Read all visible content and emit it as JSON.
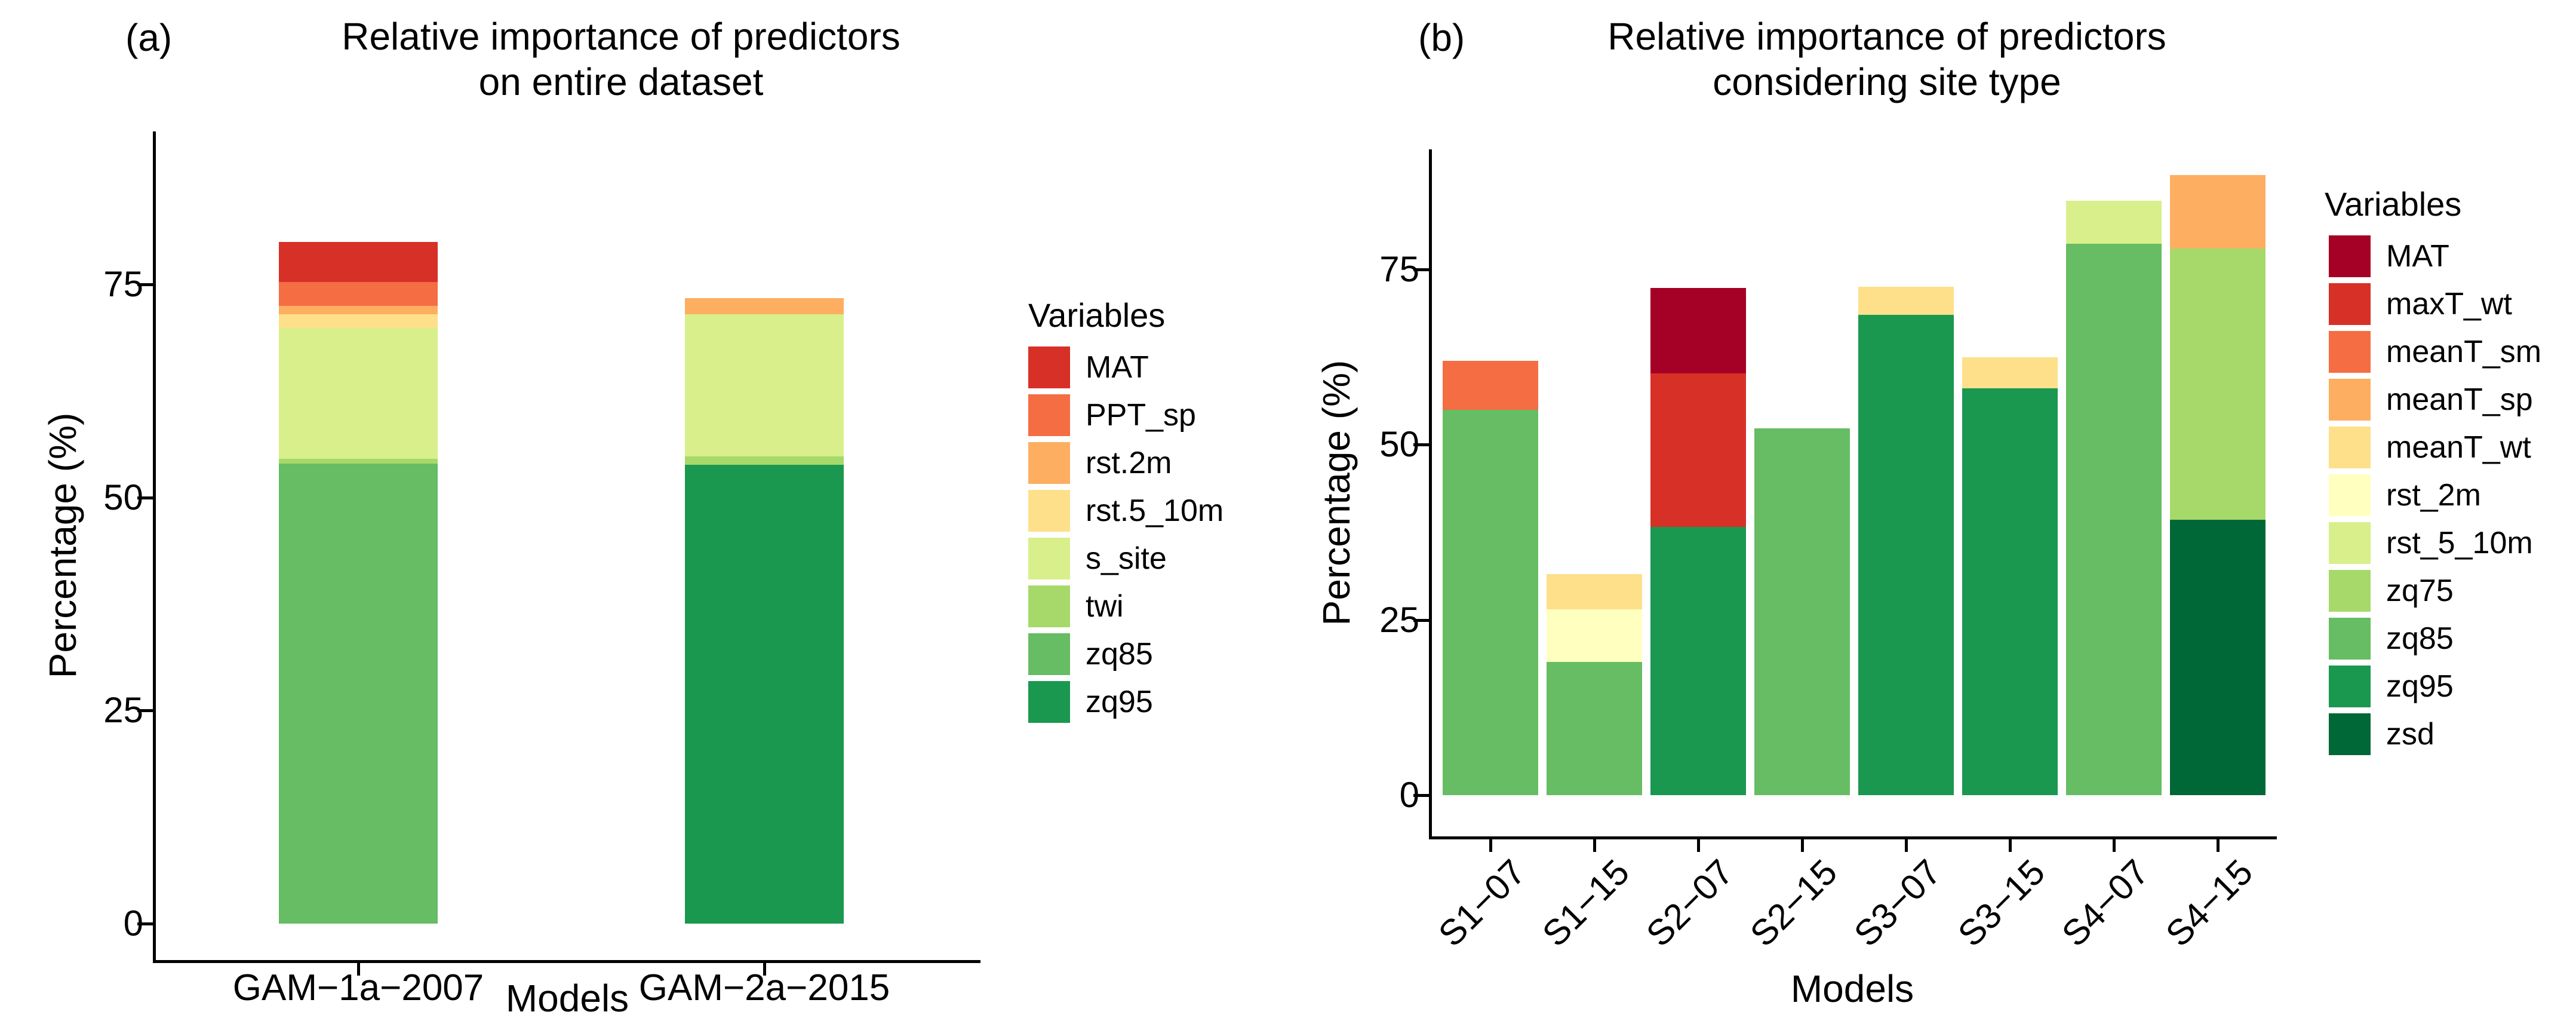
{
  "figure": {
    "background_color": "#ffffff",
    "text_color": "#000000",
    "panel_a": {
      "tag": "(a)",
      "title_line1": "Relative importance of predictors",
      "title_line2": "on entire dataset",
      "ylabel": "Percentage (%)",
      "xlabel": "Models",
      "legend_title": "Variables"
    },
    "panel_b": {
      "tag": "(b)",
      "title_line1": "Relative importance of predictors",
      "title_line2": "considering site type",
      "ylabel": "Percentage (%)",
      "xlabel": "Models",
      "legend_title": "Variables"
    }
  },
  "chart_data": [
    {
      "panel": "a",
      "type": "bar",
      "stacked": true,
      "title": "(a) Relative importance of predictors on entire dataset",
      "xlabel": "Models",
      "ylabel": "Percentage (%)",
      "yticks": [
        0,
        25,
        50,
        75
      ],
      "ylim": [
        0,
        88
      ],
      "grid": false,
      "legend_title": "Variables",
      "legend_position": "right",
      "categories": [
        "GAM−1a−2007",
        "GAM−2a−2015"
      ],
      "series": [
        {
          "name": "MAT",
          "color": "#d73027",
          "values": [
            4.7,
            0
          ]
        },
        {
          "name": "PPT_sp",
          "color": "#f46d43",
          "values": [
            2.8,
            0
          ]
        },
        {
          "name": "rst.2m",
          "color": "#fdae61",
          "values": [
            1.0,
            1.9
          ]
        },
        {
          "name": "rst.5_10m",
          "color": "#fee08b",
          "values": [
            1.6,
            0
          ]
        },
        {
          "name": "s_site",
          "color": "#d9ef8b",
          "values": [
            15.4,
            16.7
          ]
        },
        {
          "name": "twi",
          "color": "#a6d96a",
          "values": [
            0.5,
            1.0
          ]
        },
        {
          "name": "zq85",
          "color": "#66bd63",
          "values": [
            54.0,
            0
          ]
        },
        {
          "name": "zq95",
          "color": "#1a9850",
          "values": [
            0,
            53.8
          ]
        }
      ],
      "bar_totals": [
        80.0,
        73.4
      ]
    },
    {
      "panel": "b",
      "type": "bar",
      "stacked": true,
      "title": "(b) Relative importance of predictors considering site type",
      "xlabel": "Models",
      "ylabel": "Percentage (%)",
      "yticks": [
        0,
        25,
        50,
        75
      ],
      "ylim": [
        0,
        92
      ],
      "grid": false,
      "legend_title": "Variables",
      "legend_position": "right",
      "categories": [
        "S1−07",
        "S1−15",
        "S2−07",
        "S2−15",
        "S3−07",
        "S3−15",
        "S4−07",
        "S4−15"
      ],
      "series": [
        {
          "name": "MAT",
          "color": "#a50026",
          "values": [
            0,
            0,
            12.2,
            0,
            0,
            0,
            0,
            0
          ]
        },
        {
          "name": "maxT_wt",
          "color": "#d73027",
          "values": [
            0,
            0,
            21.9,
            0,
            0,
            0,
            0,
            0
          ]
        },
        {
          "name": "meanT_sm",
          "color": "#f46d43",
          "values": [
            7.0,
            0,
            0,
            0,
            0,
            0,
            0,
            0
          ]
        },
        {
          "name": "meanT_sp",
          "color": "#fdae61",
          "values": [
            0,
            0,
            0,
            0,
            0,
            0,
            0,
            10.5
          ]
        },
        {
          "name": "meanT_wt",
          "color": "#fee08b",
          "values": [
            0,
            5.0,
            0,
            0,
            4.0,
            4.5,
            0,
            0
          ]
        },
        {
          "name": "rst_2m",
          "color": "#ffffbf",
          "values": [
            0,
            7.5,
            0,
            0,
            0,
            0,
            0,
            0
          ]
        },
        {
          "name": "rst_5_10m",
          "color": "#d9ef8b",
          "values": [
            0,
            0,
            0,
            0,
            0,
            0,
            6.1,
            0
          ]
        },
        {
          "name": "zq75",
          "color": "#a6d96a",
          "values": [
            0,
            0,
            0,
            0,
            0,
            0,
            0,
            38.7
          ]
        },
        {
          "name": "zq85",
          "color": "#66bd63",
          "values": [
            55.0,
            19.0,
            0,
            52.3,
            0,
            0,
            78.7,
            0
          ]
        },
        {
          "name": "zq95",
          "color": "#1a9850",
          "values": [
            0,
            0,
            38.3,
            0,
            68.5,
            58.0,
            0,
            0
          ]
        },
        {
          "name": "zsd",
          "color": "#006837",
          "values": [
            0,
            0,
            0,
            0,
            0,
            0,
            0,
            39.3
          ]
        }
      ],
      "bar_totals": [
        62.0,
        31.5,
        72.4,
        52.3,
        72.5,
        62.5,
        84.8,
        88.5
      ]
    }
  ]
}
